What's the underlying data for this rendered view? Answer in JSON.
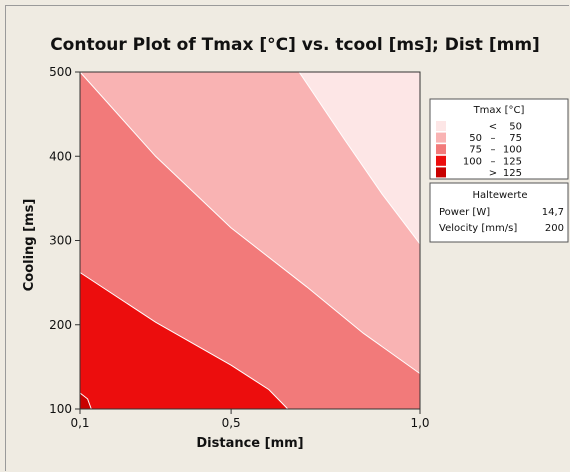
{
  "chart_data": {
    "type": "contour",
    "title": "Contour Plot of Tmax [°C] vs. tcool [ms]; Dist [mm]",
    "xlabel": "Distance [mm]",
    "ylabel": "Cooling [ms]",
    "xlim": [
      0.1,
      1.0
    ],
    "ylim": [
      100,
      500
    ],
    "xticks": [
      {
        "value": 0.1,
        "label": "0,1"
      },
      {
        "value": 0.5,
        "label": "0,5"
      },
      {
        "value": 1.0,
        "label": "1,0"
      }
    ],
    "yticks": [
      {
        "value": 100,
        "label": "100"
      },
      {
        "value": 200,
        "label": "200"
      },
      {
        "value": 300,
        "label": "300"
      },
      {
        "value": 400,
        "label": "400"
      },
      {
        "value": 500,
        "label": "500"
      }
    ],
    "legend": {
      "title": "Tmax [°C]",
      "levels": [
        {
          "from": "",
          "sep": "<",
          "to": "50",
          "color": "#fde6e6"
        },
        {
          "from": "50",
          "sep": "–",
          "to": "75",
          "color": "#f9b3b3"
        },
        {
          "from": "75",
          "sep": "–",
          "to": "100",
          "color": "#f27a7a"
        },
        {
          "from": "100",
          "sep": "–",
          "to": "125",
          "color": "#ec0d0d"
        },
        {
          "from": "",
          "sep": ">",
          "to": "125",
          "color": "#c80000"
        }
      ]
    },
    "contour_lines": [
      {
        "level": 50,
        "points": [
          [
            0.68,
            500
          ],
          [
            0.8,
            420
          ],
          [
            0.9,
            355
          ],
          [
            1.0,
            296
          ]
        ]
      },
      {
        "level": 75,
        "points": [
          [
            0.1,
            500
          ],
          [
            0.3,
            400
          ],
          [
            0.5,
            315
          ],
          [
            0.7,
            245
          ],
          [
            0.85,
            190
          ],
          [
            1.0,
            142
          ]
        ]
      },
      {
        "level": 100,
        "points": [
          [
            0.1,
            262
          ],
          [
            0.3,
            203
          ],
          [
            0.5,
            152
          ],
          [
            0.6,
            123
          ],
          [
            0.65,
            100
          ]
        ]
      },
      {
        "level": 125,
        "points": [
          [
            0.1,
            119
          ],
          [
            0.12,
            112
          ],
          [
            0.13,
            100
          ]
        ]
      }
    ],
    "hold_values": {
      "title": "Haltewerte",
      "rows": [
        {
          "label": "Power [W]",
          "value": "14,7"
        },
        {
          "label": "Velocity [mm/s]",
          "value": "200"
        }
      ]
    }
  }
}
